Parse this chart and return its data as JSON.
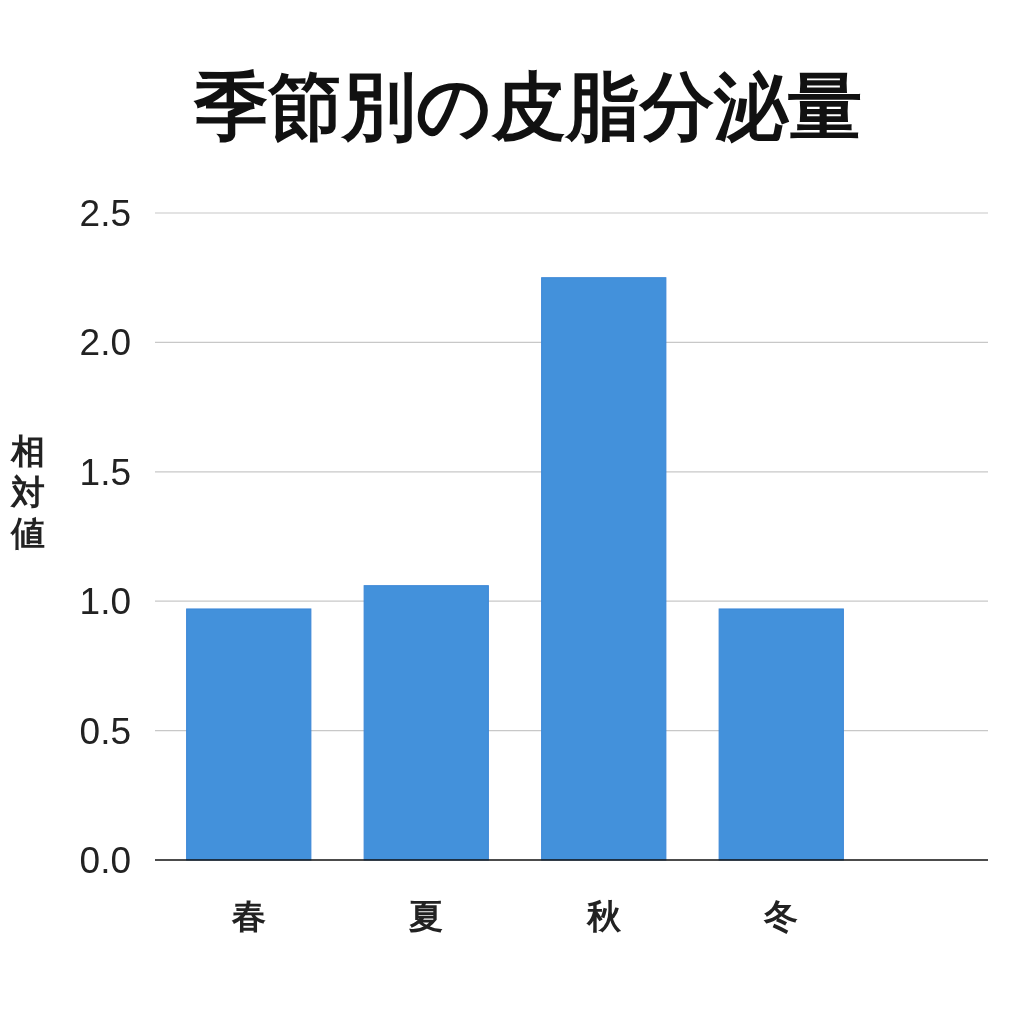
{
  "chart_data": {
    "type": "bar",
    "title": "季節別の皮脂分泌量",
    "ylabel": "相対値",
    "categories": [
      "春",
      "夏",
      "秋",
      "冬"
    ],
    "values": [
      0.97,
      1.06,
      2.25,
      0.97
    ],
    "color": "#4391db",
    "ylim": [
      0,
      2.5
    ],
    "yticks": [
      {
        "value": 0,
        "label": "0.0"
      },
      {
        "value": 0.5,
        "label": "0.5"
      },
      {
        "value": 1,
        "label": "1.0"
      },
      {
        "value": 1.5,
        "label": "1.5"
      },
      {
        "value": 2,
        "label": "2.0"
      },
      {
        "value": 2.5,
        "label": "2.5"
      }
    ],
    "grid": "y"
  }
}
